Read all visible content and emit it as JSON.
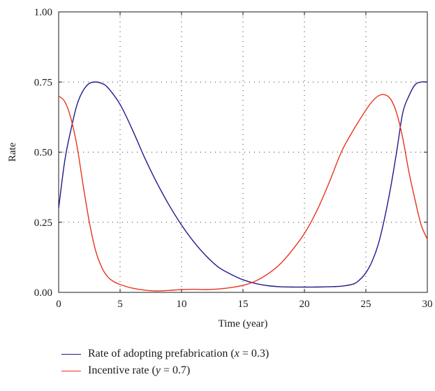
{
  "chart_data": {
    "type": "line",
    "xlabel": "Time (year)",
    "ylabel": "Rate",
    "xlim": [
      0,
      30
    ],
    "ylim": [
      0,
      1
    ],
    "xticks": [
      "0",
      "5",
      "10",
      "15",
      "20",
      "25",
      "30"
    ],
    "yticks": [
      "0.00",
      "0.25",
      "0.50",
      "0.75",
      "1.00"
    ],
    "grid": "dotted",
    "legend_position": "bottom",
    "series": [
      {
        "name": "Rate of adopting prefabrication (x = 0.3)",
        "color": "#1f1a8c",
        "x": [
          0,
          0.5,
          1,
          1.5,
          2,
          2.5,
          3,
          3.5,
          4,
          5,
          6,
          7,
          8,
          9,
          10,
          11,
          12,
          13,
          14,
          15,
          16,
          17,
          18,
          19,
          20,
          21,
          22,
          23,
          24,
          24.5,
          25,
          25.5,
          26,
          26.5,
          27,
          27.5,
          28,
          28.5,
          29,
          29.5,
          30
        ],
        "y": [
          0.3,
          0.47,
          0.58,
          0.67,
          0.72,
          0.745,
          0.75,
          0.745,
          0.73,
          0.67,
          0.58,
          0.48,
          0.39,
          0.31,
          0.24,
          0.18,
          0.13,
          0.09,
          0.065,
          0.045,
          0.032,
          0.024,
          0.02,
          0.019,
          0.019,
          0.019,
          0.02,
          0.022,
          0.03,
          0.045,
          0.07,
          0.11,
          0.17,
          0.26,
          0.37,
          0.5,
          0.64,
          0.7,
          0.74,
          0.75,
          0.75
        ]
      },
      {
        "name": "Incentive rate (y = 0.7)",
        "color": "#e8341f",
        "x": [
          0,
          0.5,
          1,
          1.5,
          2,
          2.5,
          3,
          3.5,
          4,
          4.5,
          5,
          6,
          7,
          8,
          9,
          10,
          11,
          12,
          13,
          14,
          15,
          16,
          17,
          18,
          19,
          20,
          21,
          22,
          23,
          24,
          25,
          25.5,
          26,
          26.5,
          27,
          27.5,
          28,
          28.5,
          29,
          29.5,
          30
        ],
        "y": [
          0.7,
          0.68,
          0.62,
          0.52,
          0.38,
          0.25,
          0.15,
          0.09,
          0.055,
          0.038,
          0.028,
          0.015,
          0.008,
          0.005,
          0.007,
          0.01,
          0.011,
          0.01,
          0.012,
          0.017,
          0.025,
          0.04,
          0.065,
          0.1,
          0.15,
          0.21,
          0.29,
          0.39,
          0.5,
          0.58,
          0.65,
          0.68,
          0.7,
          0.705,
          0.69,
          0.64,
          0.55,
          0.43,
          0.33,
          0.24,
          0.19
        ]
      }
    ]
  },
  "legend": {
    "items": [
      {
        "label_pre": "Rate of adopting prefabrication (",
        "var": "x",
        "label_post": " = 0.3)",
        "color": "#1f1a8c"
      },
      {
        "label_pre": "Incentive rate (",
        "var": "y",
        "label_post": " = 0.7)",
        "color": "#e8341f"
      }
    ]
  }
}
